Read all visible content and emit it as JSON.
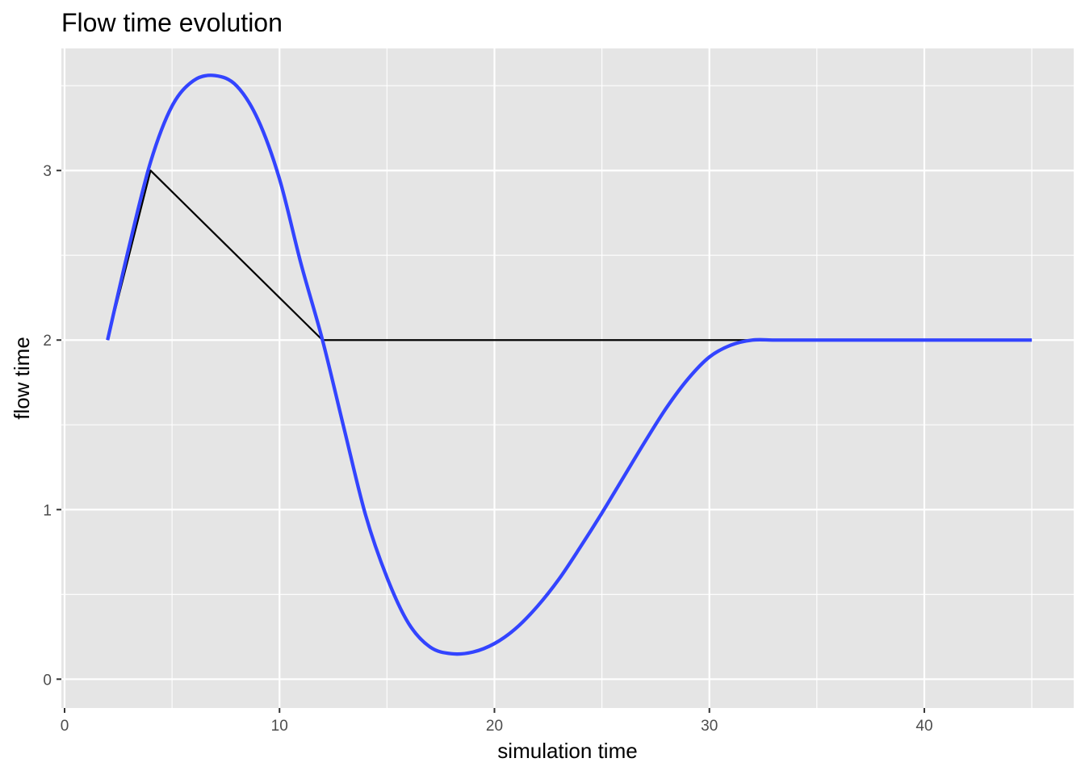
{
  "chart_data": {
    "type": "line",
    "title": "Flow time evolution",
    "xlabel": "simulation time",
    "ylabel": "flow time",
    "xlim": [
      -0.15,
      46.95
    ],
    "ylim": [
      -0.17,
      3.72
    ],
    "x_ticks": [
      0,
      10,
      20,
      30,
      40
    ],
    "x_tick_labels": [
      "0",
      "10",
      "20",
      "30",
      "40"
    ],
    "y_ticks": [
      0,
      1,
      2,
      3
    ],
    "y_tick_labels": [
      "0",
      "1",
      "2",
      "3"
    ],
    "grid": true,
    "legend": "none",
    "series": [
      {
        "color": "#000000",
        "x": [
          2,
          4,
          12,
          32,
          45
        ],
        "y": [
          2,
          3,
          2,
          2,
          2
        ]
      },
      {
        "color": "#3344ff",
        "smooth": true,
        "x": [
          2,
          3,
          4,
          5,
          6,
          7,
          8,
          9,
          10,
          11,
          12,
          13,
          14,
          15,
          16,
          17,
          18,
          19,
          20,
          21,
          22,
          23,
          24,
          25,
          26,
          27,
          28,
          29,
          30,
          31,
          32,
          33,
          34,
          35,
          36,
          37,
          38,
          39,
          40,
          41,
          42,
          43,
          44,
          45
        ],
        "y": [
          2.0,
          2.55,
          3.05,
          3.38,
          3.53,
          3.56,
          3.5,
          3.3,
          2.95,
          2.45,
          2.0,
          1.48,
          0.97,
          0.6,
          0.33,
          0.19,
          0.15,
          0.16,
          0.21,
          0.3,
          0.43,
          0.59,
          0.78,
          0.98,
          1.19,
          1.4,
          1.6,
          1.77,
          1.9,
          1.97,
          2.0,
          2.0,
          2.0,
          2.0,
          2.0,
          2.0,
          2.0,
          2.0,
          2.0,
          2.0,
          2.0,
          2.0,
          2.0,
          2.0
        ]
      }
    ]
  }
}
